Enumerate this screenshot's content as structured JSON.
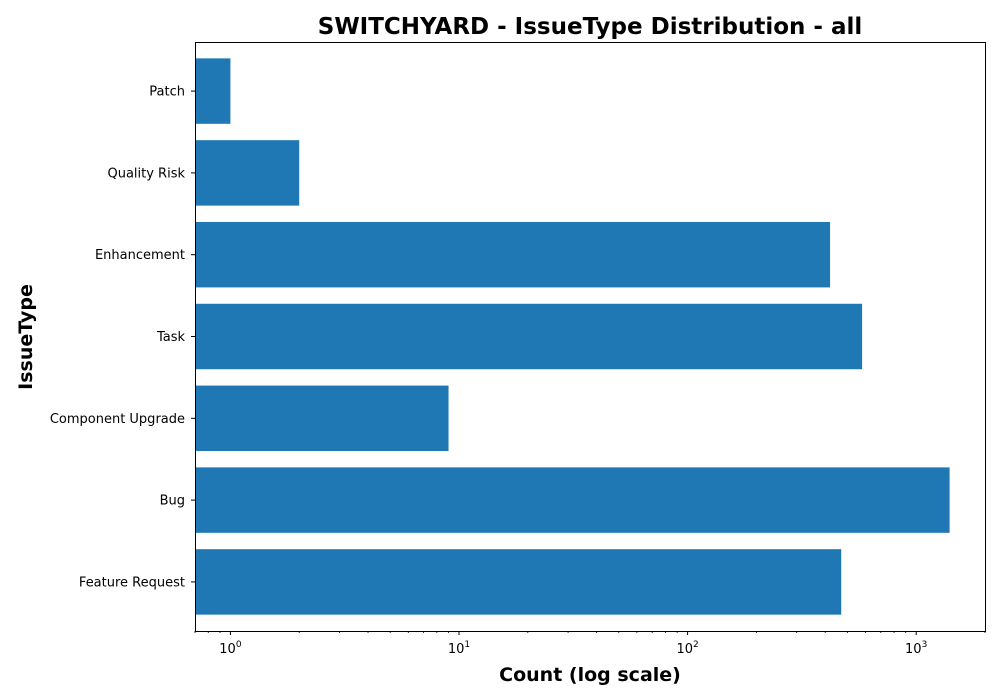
{
  "chart_data": {
    "type": "bar",
    "orientation": "horizontal",
    "title": "SWITCHYARD - IssueType Distribution - all",
    "xlabel": "Count (log scale)",
    "ylabel": "IssueType",
    "x_scale": "log",
    "xlim": [
      0.7,
      2000
    ],
    "x_ticks": [
      {
        "value": 1,
        "base": "10",
        "exp": "0"
      },
      {
        "value": 10,
        "base": "10",
        "exp": "1"
      },
      {
        "value": 100,
        "base": "10",
        "exp": "2"
      },
      {
        "value": 1000,
        "base": "10",
        "exp": "3"
      }
    ],
    "categories": [
      "Feature Request",
      "Bug",
      "Component Upgrade",
      "Task",
      "Enhancement",
      "Quality Risk",
      "Patch"
    ],
    "values": [
      470,
      1400,
      9,
      580,
      420,
      2,
      1
    ],
    "grid": false,
    "legend": "none",
    "bar_color": "#1f77b4"
  }
}
